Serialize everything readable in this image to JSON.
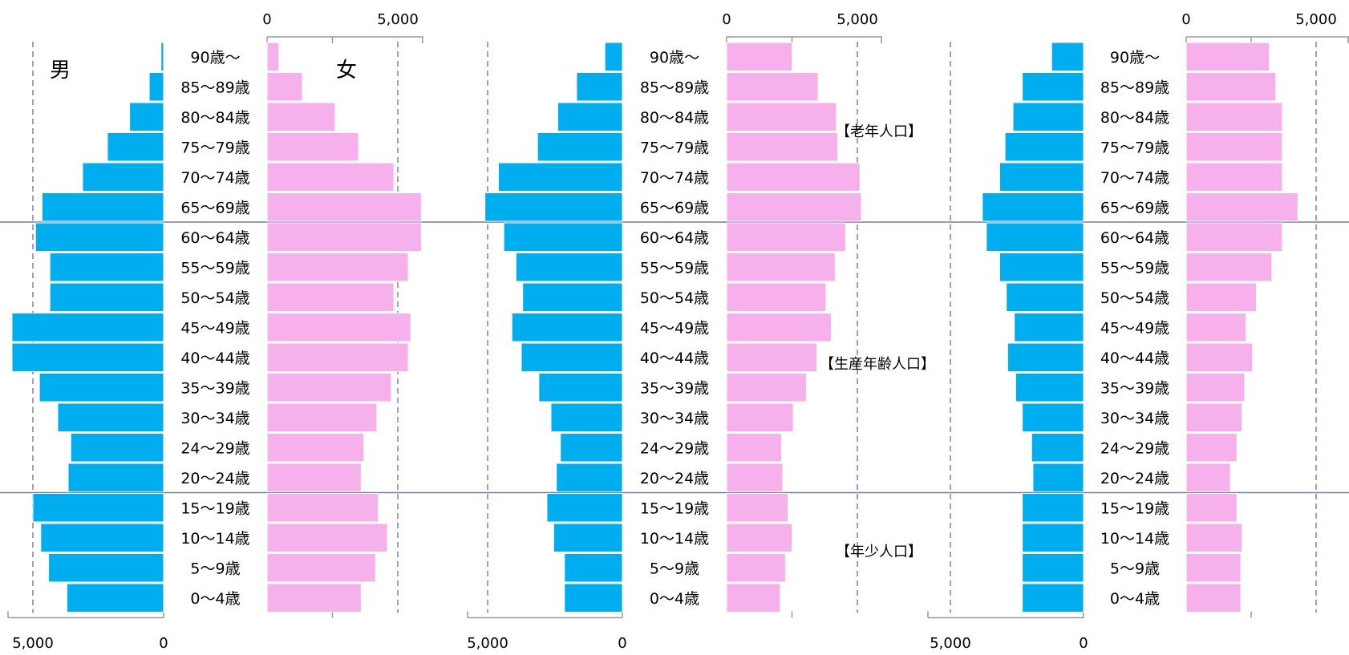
{
  "chart_data": {
    "type": "bar",
    "age_groups": [
      "90歳～",
      "85～89歳",
      "80～84歳",
      "75～79歳",
      "70～74歳",
      "65～69歳",
      "60～64歳",
      "55～59歳",
      "50～54歳",
      "45～49歳",
      "40～44歳",
      "35～39歳",
      "30～34歳",
      "24～29歳",
      "20～24歳",
      "15～19歳",
      "10～14歳",
      "5～9歳",
      "0～4歳"
    ],
    "sex_labels": {
      "male": "男",
      "female": "女"
    },
    "group_labels": {
      "elderly": "【老年人口】",
      "working": "【生産年齢人口】",
      "young": "【年少人口】"
    },
    "tick_labels": {
      "zero": "0",
      "max": "5,000"
    },
    "xlim": [
      0,
      5000
    ],
    "colors": {
      "male": "#00AEEF",
      "female": "#F6B0EC",
      "dashed": "#7F7FB3",
      "divider": "#6E7DA8"
    },
    "pyramids": [
      {
        "male": [
          100,
          550,
          1300,
          2150,
          3100,
          4650,
          4900,
          4350,
          4350,
          5800,
          5800,
          4750,
          4050,
          3550,
          3650,
          5000,
          4700,
          4400,
          3700
        ],
        "female": [
          450,
          1350,
          2600,
          3500,
          4850,
          5900,
          5900,
          5400,
          4850,
          5500,
          5400,
          4750,
          4200,
          3700,
          3600,
          4250,
          4600,
          4150,
          3600
        ]
      },
      {
        "male": [
          650,
          1700,
          2400,
          3150,
          4600,
          5100,
          4400,
          3950,
          3700,
          4100,
          3750,
          3100,
          2650,
          2300,
          2450,
          2800,
          2550,
          2150,
          2150
        ],
        "female": [
          2500,
          3500,
          4200,
          4250,
          5100,
          5150,
          4550,
          4150,
          3800,
          4000,
          3450,
          3050,
          2550,
          2100,
          2150,
          2350,
          2500,
          2250,
          2050
        ]
      },
      {
        "male": [
          1200,
          2300,
          2650,
          2950,
          3150,
          3800,
          3650,
          3150,
          2900,
          2600,
          2850,
          2550,
          2300,
          1950,
          1900,
          2300,
          2300,
          2300,
          2300
        ],
        "female": [
          3200,
          3450,
          3700,
          3700,
          3700,
          4300,
          3700,
          3300,
          2700,
          2300,
          2550,
          2250,
          2150,
          1950,
          1700,
          1950,
          2150,
          2100,
          2100
        ]
      }
    ]
  }
}
